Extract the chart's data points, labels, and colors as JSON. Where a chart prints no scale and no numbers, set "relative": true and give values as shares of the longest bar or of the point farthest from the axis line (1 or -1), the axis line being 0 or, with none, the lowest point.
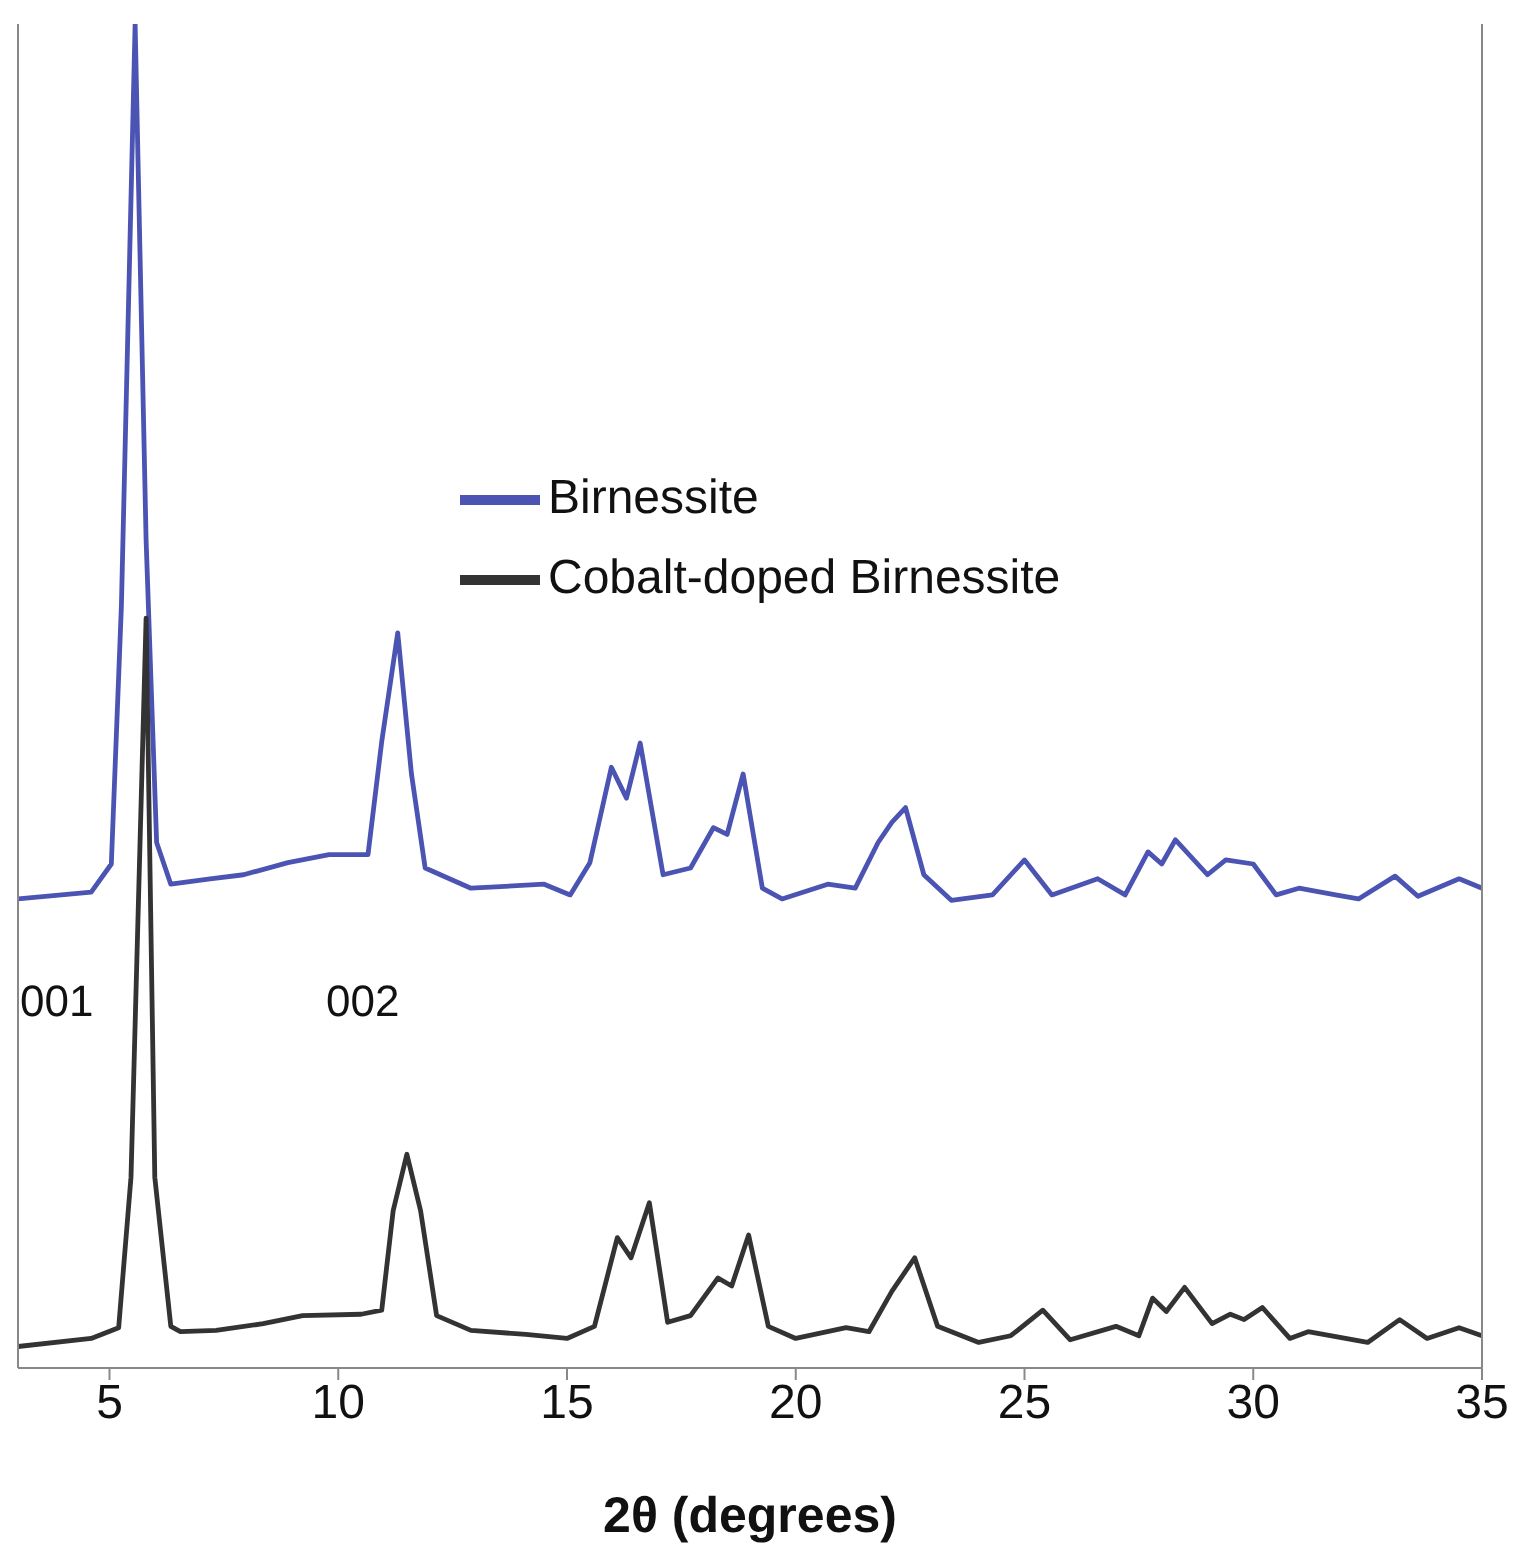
{
  "chart_data": {
    "type": "line",
    "xlabel": "2θ (degrees)",
    "relative": true,
    "xlim": [
      3,
      35
    ],
    "xticks": [
      5,
      10,
      15,
      20,
      25,
      30,
      35
    ],
    "legend": "top",
    "marker": "none",
    "line_style": "solid",
    "series": [
      {
        "name": "Birnessite",
        "color": "#4b54b3",
        "x": [
          3.0,
          4.6,
          5.04,
          5.26,
          5.56,
          5.8,
          6.03,
          6.34,
          7.2,
          7.93,
          8.9,
          9.8,
          10.65,
          10.95,
          11.3,
          11.6,
          11.9,
          12.9,
          14.5,
          15.07,
          15.5,
          15.97,
          16.3,
          16.6,
          17.1,
          17.7,
          18.2,
          18.5,
          18.85,
          19.27,
          19.7,
          20.7,
          21.3,
          21.8,
          22.1,
          22.4,
          22.8,
          23.4,
          24.3,
          25.0,
          25.6,
          26.6,
          27.2,
          27.7,
          28.0,
          28.3,
          29.0,
          29.4,
          30.0,
          30.5,
          31.0,
          31.8,
          32.3,
          33.1,
          33.6,
          34.5,
          35.0
        ],
        "values": [
          0.349,
          0.354,
          0.375,
          0.567,
          1,
          0.616,
          0.391,
          0.36,
          0.364,
          0.367,
          0.376,
          0.382,
          0.382,
          0.466,
          0.547,
          0.442,
          0.372,
          0.357,
          0.36,
          0.352,
          0.376,
          0.447,
          0.424,
          0.465,
          0.367,
          0.372,
          0.402,
          0.397,
          0.442,
          0.357,
          0.349,
          0.36,
          0.357,
          0.391,
          0.406,
          0.417,
          0.367,
          0.348,
          0.352,
          0.378,
          0.352,
          0.364,
          0.352,
          0.384,
          0.375,
          0.393,
          0.367,
          0.378,
          0.375,
          0.352,
          0.357,
          0.352,
          0.349,
          0.366,
          0.351,
          0.364,
          0.357
        ]
      },
      {
        "name": "Cobalt-doped Birnessite",
        "color": "#333333",
        "x": [
          3.0,
          4.6,
          5.2,
          5.47,
          5.8,
          5.99,
          6.34,
          6.55,
          7.33,
          8.36,
          9.22,
          10.5,
          10.95,
          11.2,
          11.5,
          11.8,
          12.15,
          12.9,
          14.1,
          15.0,
          15.6,
          16.1,
          16.4,
          16.8,
          17.2,
          17.7,
          18.3,
          18.6,
          18.97,
          19.4,
          20.0,
          21.1,
          21.6,
          22.1,
          22.6,
          23.1,
          24.0,
          24.7,
          25.4,
          26.0,
          27.0,
          27.5,
          27.8,
          28.1,
          28.5,
          29.1,
          29.5,
          29.8,
          30.2,
          30.8,
          31.2,
          32.5,
          33.2,
          33.8,
          34.5,
          35.0
        ],
        "values": [
          0.016,
          0.022,
          0.03,
          0.142,
          0.558,
          0.142,
          0.031,
          0.027,
          0.028,
          0.033,
          0.039,
          0.04,
          0.043,
          0.117,
          0.159,
          0.117,
          0.039,
          0.028,
          0.025,
          0.022,
          0.031,
          0.097,
          0.082,
          0.123,
          0.034,
          0.039,
          0.067,
          0.061,
          0.099,
          0.031,
          0.022,
          0.03,
          0.027,
          0.057,
          0.082,
          0.031,
          0.019,
          0.024,
          0.043,
          0.021,
          0.031,
          0.024,
          0.052,
          0.042,
          0.06,
          0.033,
          0.04,
          0.036,
          0.045,
          0.022,
          0.027,
          0.019,
          0.036,
          0.022,
          0.03,
          0.024
        ]
      }
    ],
    "annotations": [
      "001",
      "002"
    ]
  }
}
